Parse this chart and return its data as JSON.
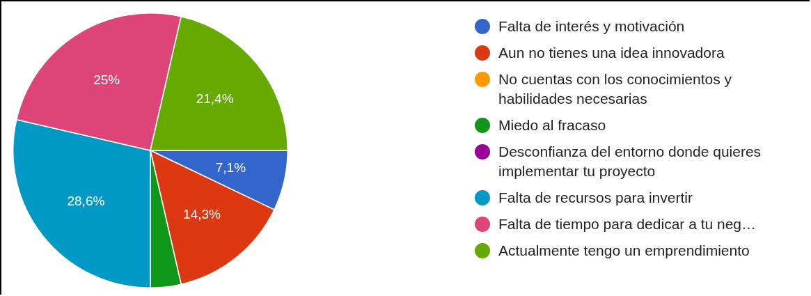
{
  "chart_data": {
    "type": "pie",
    "categories": [
      "Falta de interés y motivación",
      "Aun no tienes una idea innovadora",
      "No cuentas con los conocimientos y habilidades necesarias",
      "Miedo al fracaso",
      "Desconfianza del entorno donde quieres implementar tu proyecto",
      "Falta de recursos para invertir",
      "Falta de tiempo para dedicar a tu neg…",
      "Actualmente tengo un emprendimiento"
    ],
    "values": [
      7.1,
      14.3,
      0,
      3.6,
      0,
      28.6,
      25,
      21.4
    ],
    "value_labels": [
      "7,1%",
      "14,3%",
      null,
      null,
      null,
      "28,6%",
      "25%",
      "21,4%"
    ],
    "colors": [
      "#3366cc",
      "#dc3912",
      "#ff9900",
      "#109618",
      "#990099",
      "#0099c6",
      "#dd4477",
      "#66aa00"
    ],
    "legend": "right"
  }
}
